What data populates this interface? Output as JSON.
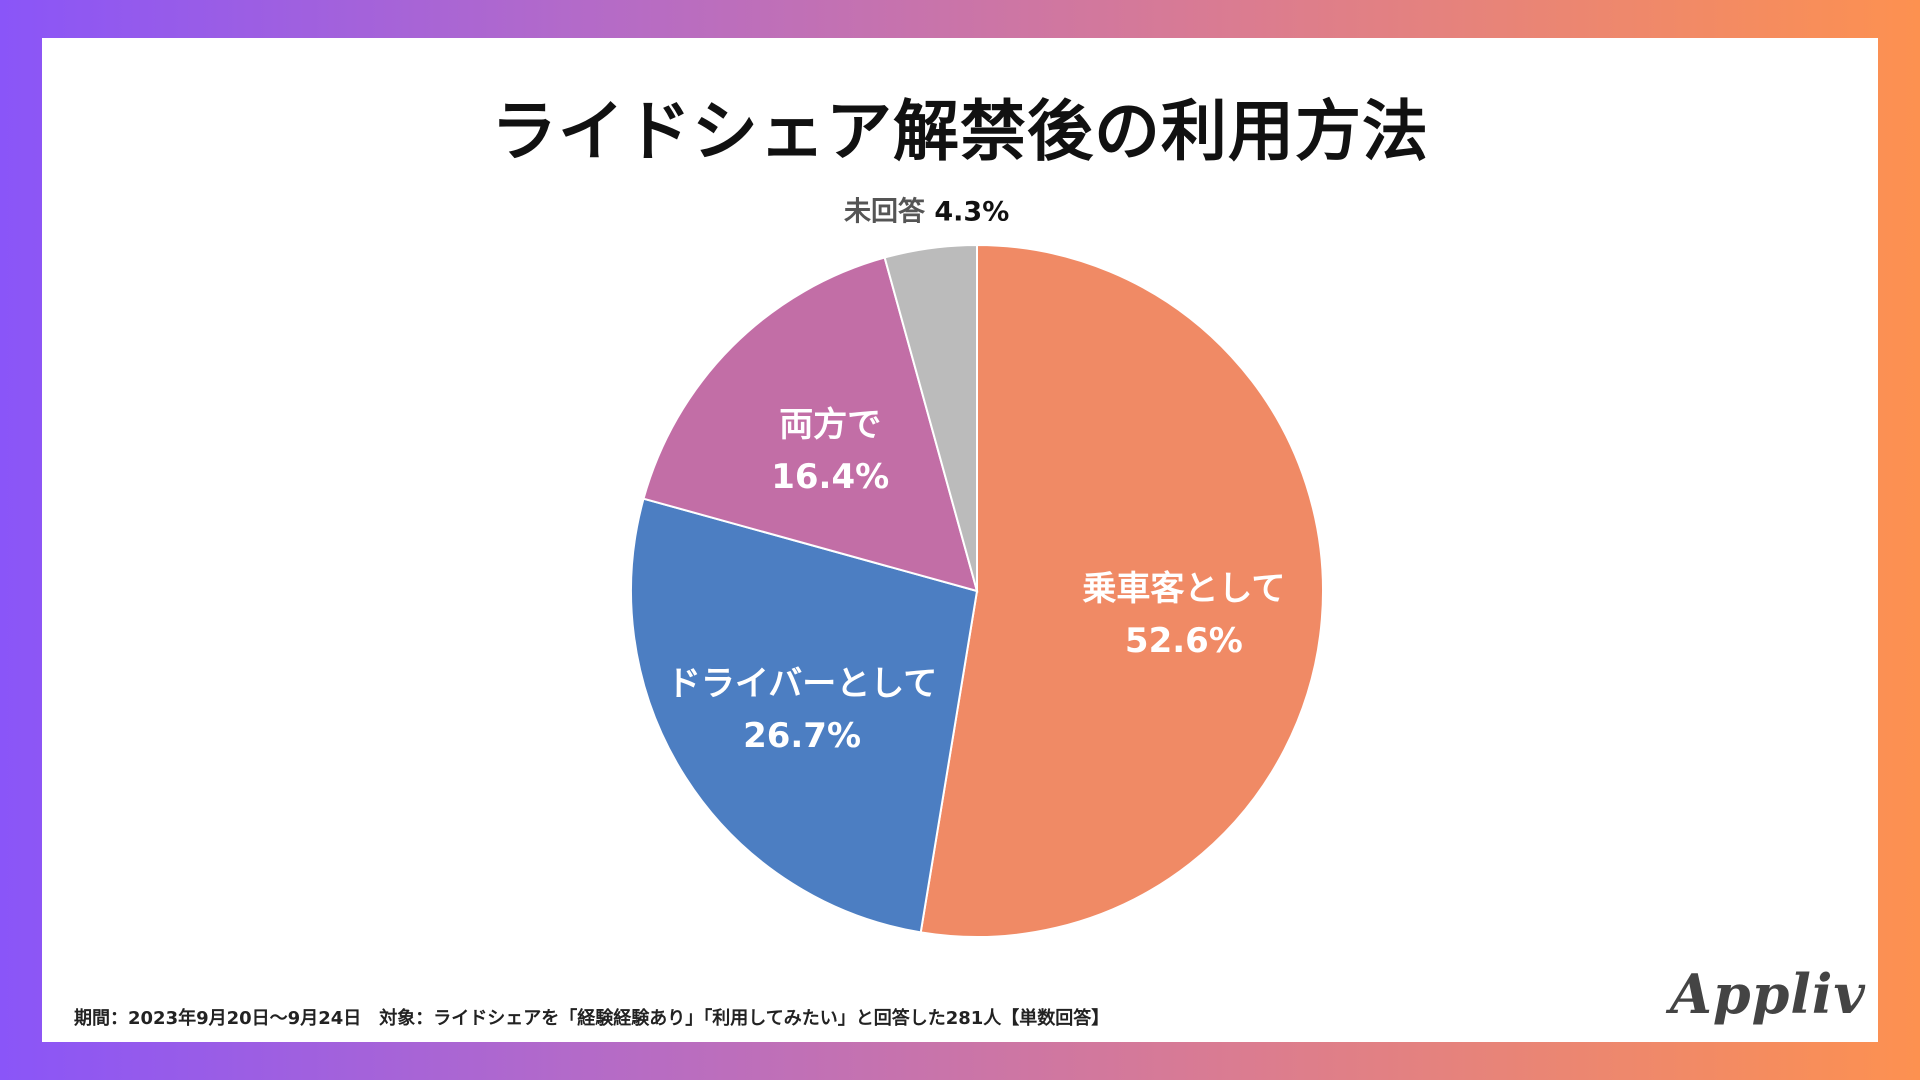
{
  "title": "ライドシェア解禁後の利用方法",
  "footnote": "期間：2023年9月20日〜9月24日　対象：ライドシェアを「経験経験あり」「利用してみたい」と回答した281人【単数回答】",
  "logo": "Appliv",
  "colors": {
    "background_gradient": [
      "#8a55f8",
      "#fd9150"
    ],
    "passenger": "#f08a65",
    "driver": "#4c7ec2",
    "both": "#c26ea6",
    "no_answer": "#bbbbbb"
  },
  "chart_data": {
    "type": "pie",
    "title": "ライドシェア解禁後の利用方法",
    "start_angle": "12 o'clock",
    "direction": "clockwise",
    "slices": [
      {
        "label": "乗車客として",
        "value": 52.6,
        "value_label": "52.6%",
        "color": "#f08a65",
        "label_position": "inside"
      },
      {
        "label": "ドライバーとして",
        "value": 26.7,
        "value_label": "26.7%",
        "color": "#4c7ec2",
        "label_position": "inside"
      },
      {
        "label": "両方で",
        "value": 16.4,
        "value_label": "16.4%",
        "color": "#c26ea6",
        "label_position": "inside"
      },
      {
        "label": "未回答",
        "value": 4.3,
        "value_label": "4.3%",
        "color": "#bbbbbb",
        "label_position": "outside"
      }
    ]
  }
}
